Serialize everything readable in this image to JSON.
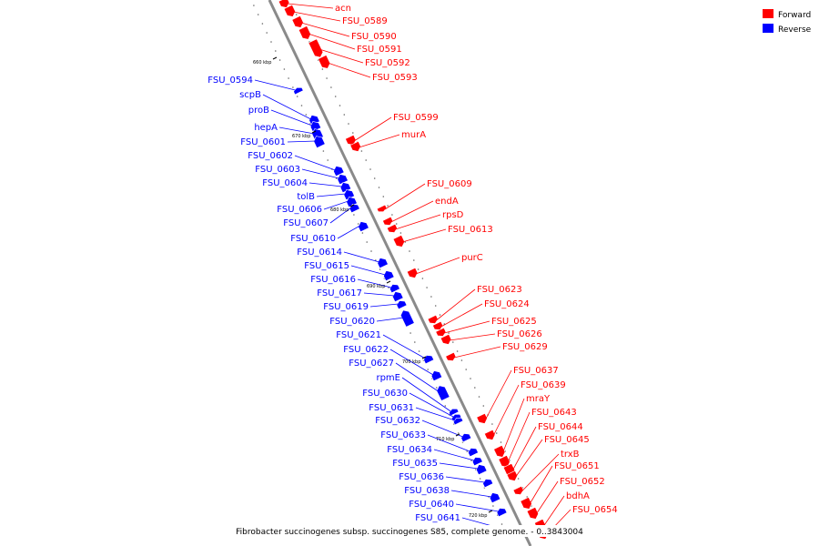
{
  "caption": "Fibrobacter succinogenes subsp. succinogenes S85, complete genome. - 0..3843004",
  "legend": [
    {
      "label": "Forward",
      "color": "#ff0000"
    },
    {
      "label": "Reverse",
      "color": "#0000ff"
    }
  ],
  "colors": {
    "forward": "#ff0000",
    "reverse": "#0000ff",
    "axis": "#888888"
  },
  "ticks": [
    "660 kbp",
    "670 kbp",
    "680 kbp",
    "690 kbp",
    "700 kbp",
    "710 kbp",
    "720 kbp"
  ],
  "forward_genes": [
    "acn",
    "FSU_0589",
    "FSU_0590",
    "FSU_0591",
    "FSU_0592",
    "FSU_0593",
    "FSU_0599",
    "murA",
    "FSU_0609",
    "endA",
    "rpsD",
    "FSU_0613",
    "purC",
    "FSU_0623",
    "FSU_0624",
    "FSU_0625",
    "FSU_0626",
    "FSU_0629",
    "FSU_0637",
    "FSU_0639",
    "mraY",
    "FSU_0643",
    "FSU_0644",
    "FSU_0645",
    "trxB",
    "FSU_0651",
    "FSU_0652",
    "bdhA",
    "FSU_0654"
  ],
  "reverse_genes": [
    "FSU_0594",
    "scpB",
    "proB",
    "hepA",
    "FSU_0601",
    "FSU_0602",
    "FSU_0603",
    "FSU_0604",
    "tolB",
    "FSU_0606",
    "FSU_0607",
    "FSU_0610",
    "FSU_0614",
    "FSU_0615",
    "FSU_0616",
    "FSU_0617",
    "FSU_0619",
    "FSU_0620",
    "FSU_0621",
    "FSU_0622",
    "FSU_0627",
    "rpmE",
    "FSU_0630",
    "FSU_0631",
    "FSU_0632",
    "FSU_0633",
    "FSU_0634",
    "FSU_0635",
    "FSU_0636",
    "FSU_0638",
    "FSU_0640",
    "FSU_0641"
  ]
}
